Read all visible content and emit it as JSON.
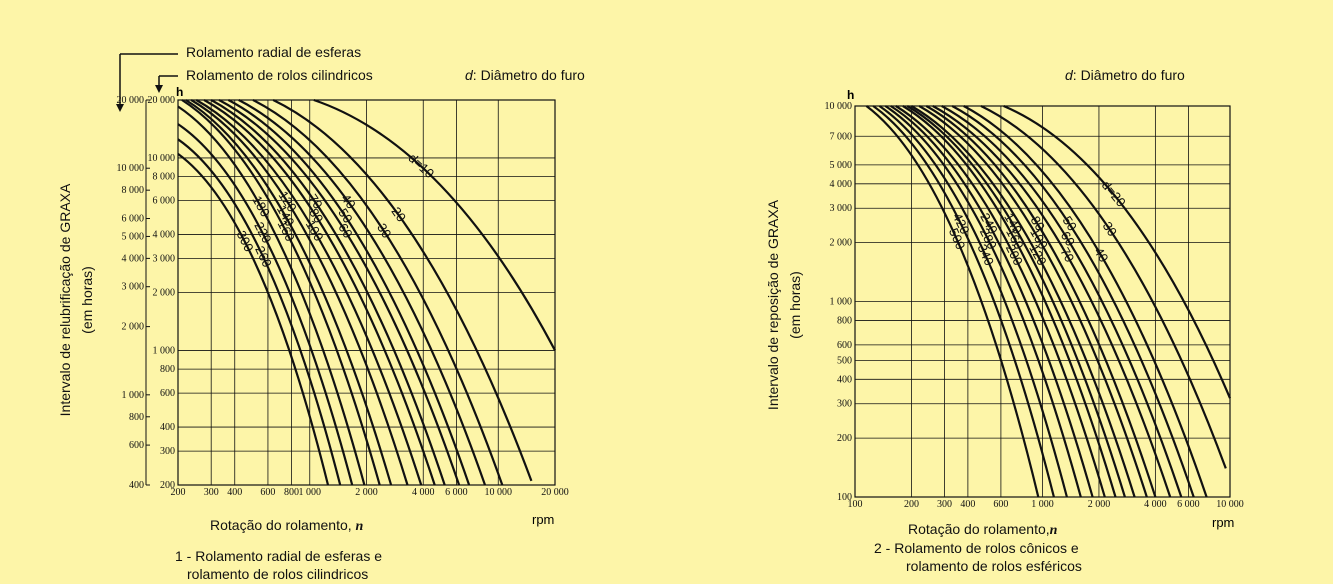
{
  "chart_data": [
    {
      "type": "line",
      "legend": {
        "radial": "Rolamento radial de esferas",
        "cylindrical": "Rolamento de rolos cilindricos"
      },
      "note": {
        "d": "d",
        "text": ": Diâmetro do furo"
      },
      "ylabel": "Intervalo de relubrificação de GRAXA",
      "ylabel2": "(em horas)",
      "xlabel": "Rotação do rolamento,",
      "xvar": "n",
      "xunit": "rpm",
      "yunit": "h",
      "caption1": "1 - Rolamento radial de esferas e",
      "caption2": "rolamento de rolos cilindricos",
      "x_scale": "log",
      "y_scale": "log",
      "xlim": [
        200,
        20000
      ],
      "ylim": [
        200,
        20000
      ],
      "x_ticks": [
        {
          "v": 200,
          "t": "200"
        },
        {
          "v": 300,
          "t": "300"
        },
        {
          "v": 400,
          "t": "400"
        },
        {
          "v": 600,
          "t": "600"
        },
        {
          "v": 800,
          "t": "800"
        },
        {
          "v": 1000,
          "t": "1 000"
        },
        {
          "v": 2000,
          "t": "2 000"
        },
        {
          "v": 4000,
          "t": "4 000"
        },
        {
          "v": 6000,
          "t": "6 000"
        },
        {
          "v": 10000,
          "t": "10 000"
        },
        {
          "v": 20000,
          "t": "20 000"
        }
      ],
      "y_ticks_inner": [
        {
          "v": 200,
          "t": "200"
        },
        {
          "v": 300,
          "t": "300"
        },
        {
          "v": 400,
          "t": "400"
        },
        {
          "v": 600,
          "t": "600"
        },
        {
          "v": 800,
          "t": "800"
        },
        {
          "v": 1000,
          "t": "1 000"
        },
        {
          "v": 2000,
          "t": "2 000"
        },
        {
          "v": 3000,
          "t": "3 000"
        },
        {
          "v": 4000,
          "t": "4 000"
        },
        {
          "v": 6000,
          "t": "6 000"
        },
        {
          "v": 8000,
          "t": "8 000"
        },
        {
          "v": 10000,
          "t": "10 000"
        },
        {
          "v": 20000,
          "t": "20 000"
        }
      ],
      "y_ticks_outer": [
        {
          "v": 400,
          "t": "400"
        },
        {
          "v": 600,
          "t": "600"
        },
        {
          "v": 800,
          "t": "800"
        },
        {
          "v": 1000,
          "t": "1 000"
        },
        {
          "v": 2000,
          "t": "2 000"
        },
        {
          "v": 3000,
          "t": "3 000"
        },
        {
          "v": 4000,
          "t": "4 000"
        },
        {
          "v": 5000,
          "t": "5 000"
        },
        {
          "v": 6000,
          "t": "6 000"
        },
        {
          "v": 8000,
          "t": "8 000"
        },
        {
          "v": 10000,
          "t": "10 000"
        },
        {
          "v": 20000,
          "t": "20 000"
        }
      ],
      "series": [
        {
          "name": "d=10",
          "points": [
            [
              1050,
              20000
            ],
            [
              20000,
              1000
            ]
          ]
        },
        {
          "name": "20",
          "points": [
            [
              640,
              20000
            ],
            [
              15000,
              210
            ]
          ]
        },
        {
          "name": "30",
          "points": [
            [
              500,
              20000
            ],
            [
              10500,
              200
            ]
          ]
        },
        {
          "name": "40",
          "points": [
            [
              420,
              20000
            ],
            [
              8500,
              200
            ]
          ]
        },
        {
          "name": "50",
          "points": [
            [
              370,
              20000
            ],
            [
              7000,
              200
            ]
          ]
        },
        {
          "name": "60",
          "points": [
            [
              330,
              20000
            ],
            [
              6200,
              200
            ]
          ]
        },
        {
          "name": "70",
          "points": [
            [
              300,
              20000
            ],
            [
              5200,
              200
            ]
          ]
        },
        {
          "name": "80",
          "points": [
            [
              275,
              20000
            ],
            [
              4600,
              200
            ]
          ]
        },
        {
          "name": "100",
          "points": [
            [
              250,
              20000
            ],
            [
              3900,
              200
            ]
          ]
        },
        {
          "name": "120",
          "points": [
            [
              235,
              20000
            ],
            [
              3300,
              200
            ]
          ]
        },
        {
          "name": "140",
          "points": [
            [
              220,
              20000
            ],
            [
              2700,
              200
            ]
          ]
        },
        {
          "name": "160",
          "points": [
            [
              210,
              20000
            ],
            [
              2350,
              200
            ]
          ]
        },
        {
          "name": "180",
          "points": [
            [
              200,
              18500
            ],
            [
              1950,
              200
            ]
          ]
        },
        {
          "name": "220",
          "points": [
            [
              200,
              15000
            ],
            [
              1680,
              200
            ]
          ]
        },
        {
          "name": "260",
          "points": [
            [
              200,
              12500
            ],
            [
              1450,
              200
            ]
          ]
        },
        {
          "name": "300",
          "points": [
            [
              200,
              10500
            ],
            [
              1250,
              200
            ]
          ]
        }
      ]
    },
    {
      "type": "line",
      "note": {
        "d": "d",
        "text": ": Diâmetro do furo"
      },
      "ylabel": "Intervalo de reposição de GRAXA",
      "ylabel2": "(em horas)",
      "xlabel": "Rotação do rolamento,",
      "xvar": "n",
      "xunit": "rpm",
      "yunit": "h",
      "caption1": "2 - Rolamento de rolos cônicos e",
      "caption2": "rolamento de rolos esféricos",
      "x_scale": "log",
      "y_scale": "log",
      "xlim": [
        100,
        10000
      ],
      "ylim": [
        100,
        10000
      ],
      "x_ticks": [
        {
          "v": 100,
          "t": "100"
        },
        {
          "v": 200,
          "t": "200"
        },
        {
          "v": 300,
          "t": "300"
        },
        {
          "v": 400,
          "t": "400"
        },
        {
          "v": 600,
          "t": "600"
        },
        {
          "v": 1000,
          "t": "1 000"
        },
        {
          "v": 2000,
          "t": "2 000"
        },
        {
          "v": 4000,
          "t": "4 000"
        },
        {
          "v": 6000,
          "t": "6 000"
        },
        {
          "v": 10000,
          "t": "10 000"
        }
      ],
      "y_ticks": [
        {
          "v": 100,
          "t": "100"
        },
        {
          "v": 200,
          "t": "200"
        },
        {
          "v": 300,
          "t": "300"
        },
        {
          "v": 400,
          "t": "400"
        },
        {
          "v": 500,
          "t": "500"
        },
        {
          "v": 600,
          "t": "600"
        },
        {
          "v": 800,
          "t": "800"
        },
        {
          "v": 1000,
          "t": "1 000"
        },
        {
          "v": 2000,
          "t": "2 000"
        },
        {
          "v": 3000,
          "t": "3 000"
        },
        {
          "v": 4000,
          "t": "4 000"
        },
        {
          "v": 5000,
          "t": "5 000"
        },
        {
          "v": 7000,
          "t": "7 000"
        },
        {
          "v": 10000,
          "t": "10 000"
        }
      ],
      "series": [
        {
          "name": "d=20",
          "points": [
            [
              620,
              10000
            ],
            [
              10000,
              320
            ]
          ]
        },
        {
          "name": "30",
          "points": [
            [
              470,
              10000
            ],
            [
              9500,
              140
            ]
          ]
        },
        {
          "name": "40",
          "points": [
            [
              380,
              10000
            ],
            [
              7500,
              100
            ]
          ]
        },
        {
          "name": "50",
          "points": [
            [
              330,
              10000
            ],
            [
              6400,
              100
            ]
          ]
        },
        {
          "name": "60",
          "points": [
            [
              290,
              10000
            ],
            [
              5500,
              100
            ]
          ]
        },
        {
          "name": "70",
          "points": [
            [
              260,
              10000
            ],
            [
              4800,
              100
            ]
          ]
        },
        {
          "name": "80",
          "points": [
            [
              240,
              10000
            ],
            [
              4000,
              100
            ]
          ]
        },
        {
          "name": "100",
          "points": [
            [
              220,
              10000
            ],
            [
              3600,
              100
            ]
          ]
        },
        {
          "name": "120",
          "points": [
            [
              200,
              10000
            ],
            [
              3100,
              100
            ]
          ]
        },
        {
          "name": "140",
          "points": [
            [
              190,
              10000
            ],
            [
              2750,
              100
            ]
          ]
        },
        {
          "name": "160",
          "points": [
            [
              180,
              10000
            ],
            [
              2450,
              100
            ]
          ]
        },
        {
          "name": "200",
          "points": [
            [
              165,
              10000
            ],
            [
              2150,
              100
            ]
          ]
        },
        {
          "name": "240",
          "points": [
            [
              155,
              10000
            ],
            [
              1850,
              100
            ]
          ]
        },
        {
          "name": "280",
          "points": [
            [
              145,
              10000
            ],
            [
              1600,
              100
            ]
          ]
        },
        {
          "name": "340",
          "points": [
            [
              135,
              10000
            ],
            [
              1350,
              100
            ]
          ]
        },
        {
          "name": "420",
          "points": [
            [
              125,
              10000
            ],
            [
              1150,
              100
            ]
          ]
        },
        {
          "name": "500",
          "points": [
            [
              115,
              10000
            ],
            [
              950,
              100
            ]
          ]
        }
      ]
    }
  ]
}
